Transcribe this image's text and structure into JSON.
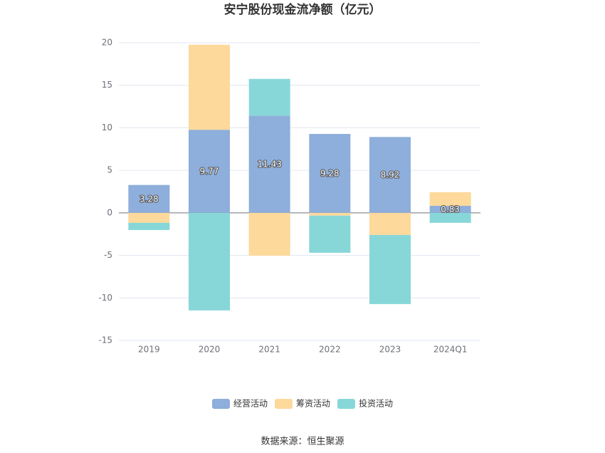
{
  "source": "数据来源：恒生聚源",
  "chart_data": {
    "type": "bar",
    "stacked": true,
    "title": "安宁股份现金流净额（亿元）",
    "categories": [
      "2019",
      "2020",
      "2021",
      "2022",
      "2023",
      "2024Q1"
    ],
    "series": [
      {
        "name": "经营活动",
        "color": "#8EAEDB",
        "values": [
          3.28,
          9.77,
          11.43,
          9.28,
          8.92,
          0.83
        ],
        "labels_shown": true
      },
      {
        "name": "筹资活动",
        "color": "#FDD99B",
        "values": [
          -1.17,
          10.0,
          -5.03,
          -0.33,
          -2.6,
          1.6
        ]
      },
      {
        "name": "投资活动",
        "color": "#87D7D9",
        "values": [
          -0.85,
          -11.47,
          4.32,
          -4.36,
          -8.12,
          -1.17
        ]
      }
    ],
    "ylim": [
      -15,
      20
    ],
    "y_ticks": [
      20,
      15,
      10,
      5,
      0,
      -5,
      -10,
      -15
    ],
    "grid": true,
    "legend_position": "bottom-center"
  }
}
